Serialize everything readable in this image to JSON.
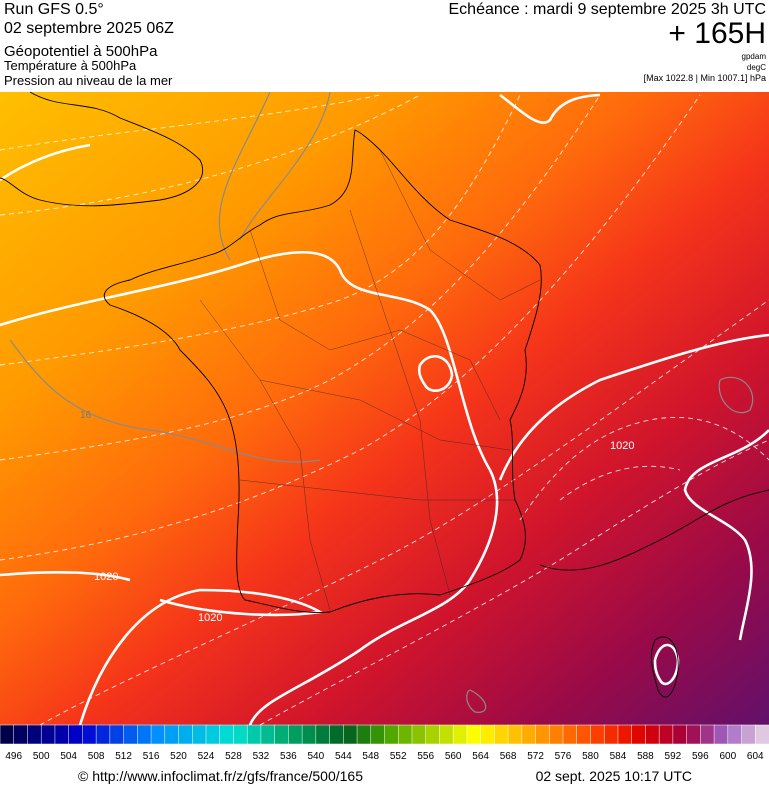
{
  "header": {
    "run": "Run GFS 0.5°",
    "run_date": "02 septembre 2025 06Z",
    "parameters": [
      "Géopotentiel à 500hPa",
      "Température à 500hPa",
      "Pression au niveau de la mer"
    ],
    "valid": "Echéance : mardi 9 septembre 2025 3h UTC",
    "lead": "+ 165H",
    "units": [
      "gpdam",
      "degC"
    ],
    "range": "[Max 1022.8 | Min 1007.1] hPa"
  },
  "map": {
    "labels": [
      "1020",
      "1020",
      "1020",
      "16"
    ]
  },
  "scale": {
    "labels": [
      "496",
      "500",
      "504",
      "508",
      "512",
      "516",
      "520",
      "524",
      "528",
      "532",
      "536",
      "540",
      "544",
      "548",
      "552",
      "556",
      "560",
      "564",
      "568",
      "572",
      "576",
      "580",
      "584",
      "588",
      "592",
      "596",
      "600",
      "604"
    ]
  },
  "footer": {
    "url": "© http://www.infoclimat.fr/z/gfs/france/500/165",
    "date": "02 sept. 2025 10:17 UTC"
  }
}
